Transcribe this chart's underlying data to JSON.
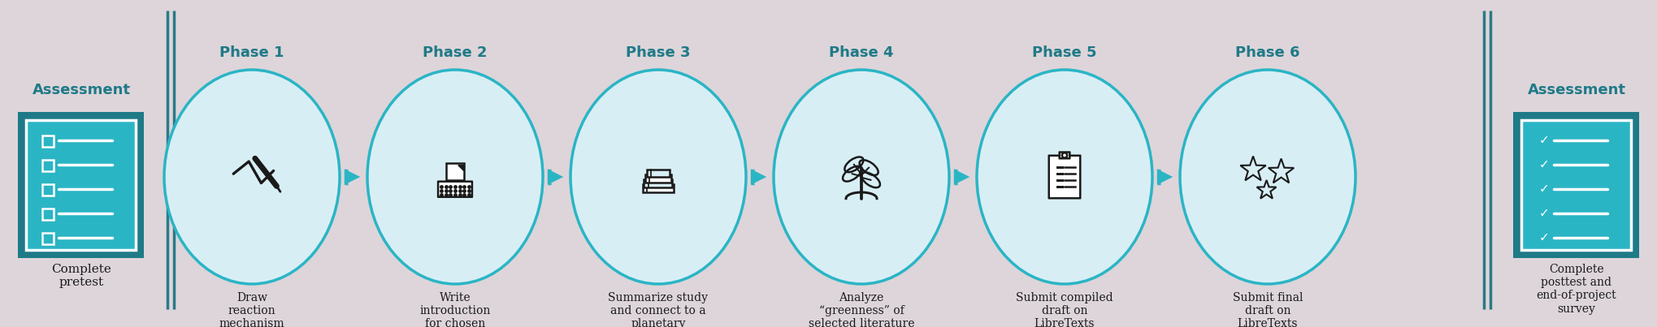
{
  "background_color": "#ddd5da",
  "teal_dark": "#1f7a87",
  "teal_bright": "#2ab5c5",
  "circle_fill": "#d8eef5",
  "circle_edge": "#2ab5c5",
  "arrow_color": "#2ab5c5",
  "assess_box_outer": "#1f7a87",
  "assess_box_inner": "#2ab5c5",
  "text_dark": "#1a1a1a",
  "text_teal": "#1f7a87",
  "divider_color": "#2a7a87",
  "phases": [
    {
      "label": "Phase 1",
      "desc": "Draw\nreaction\nmechanism"
    },
    {
      "label": "Phase 2",
      "desc": "Write\nintroduction\nfor chosen\nreaction"
    },
    {
      "label": "Phase 3",
      "desc": "Summarize study\nand connect to a\nplanetary\nboundary"
    },
    {
      "label": "Phase 4",
      "desc": "Analyze\n“greenness” of\nselected literature\nexample"
    },
    {
      "label": "Phase 5",
      "desc": "Submit compiled\ndraft on\nLibreTexts"
    },
    {
      "label": "Phase 6",
      "desc": "Submit final\ndraft on\nLibreTexts"
    }
  ],
  "assess_left_label": "Assessment",
  "assess_left_desc": "Complete\npretest",
  "assess_right_label": "Assessment",
  "assess_right_desc": "Complete\nposttest and\nend-of-project\nsurvey",
  "figwidth": 20.4,
  "figheight": 4.03,
  "dpi": 100
}
